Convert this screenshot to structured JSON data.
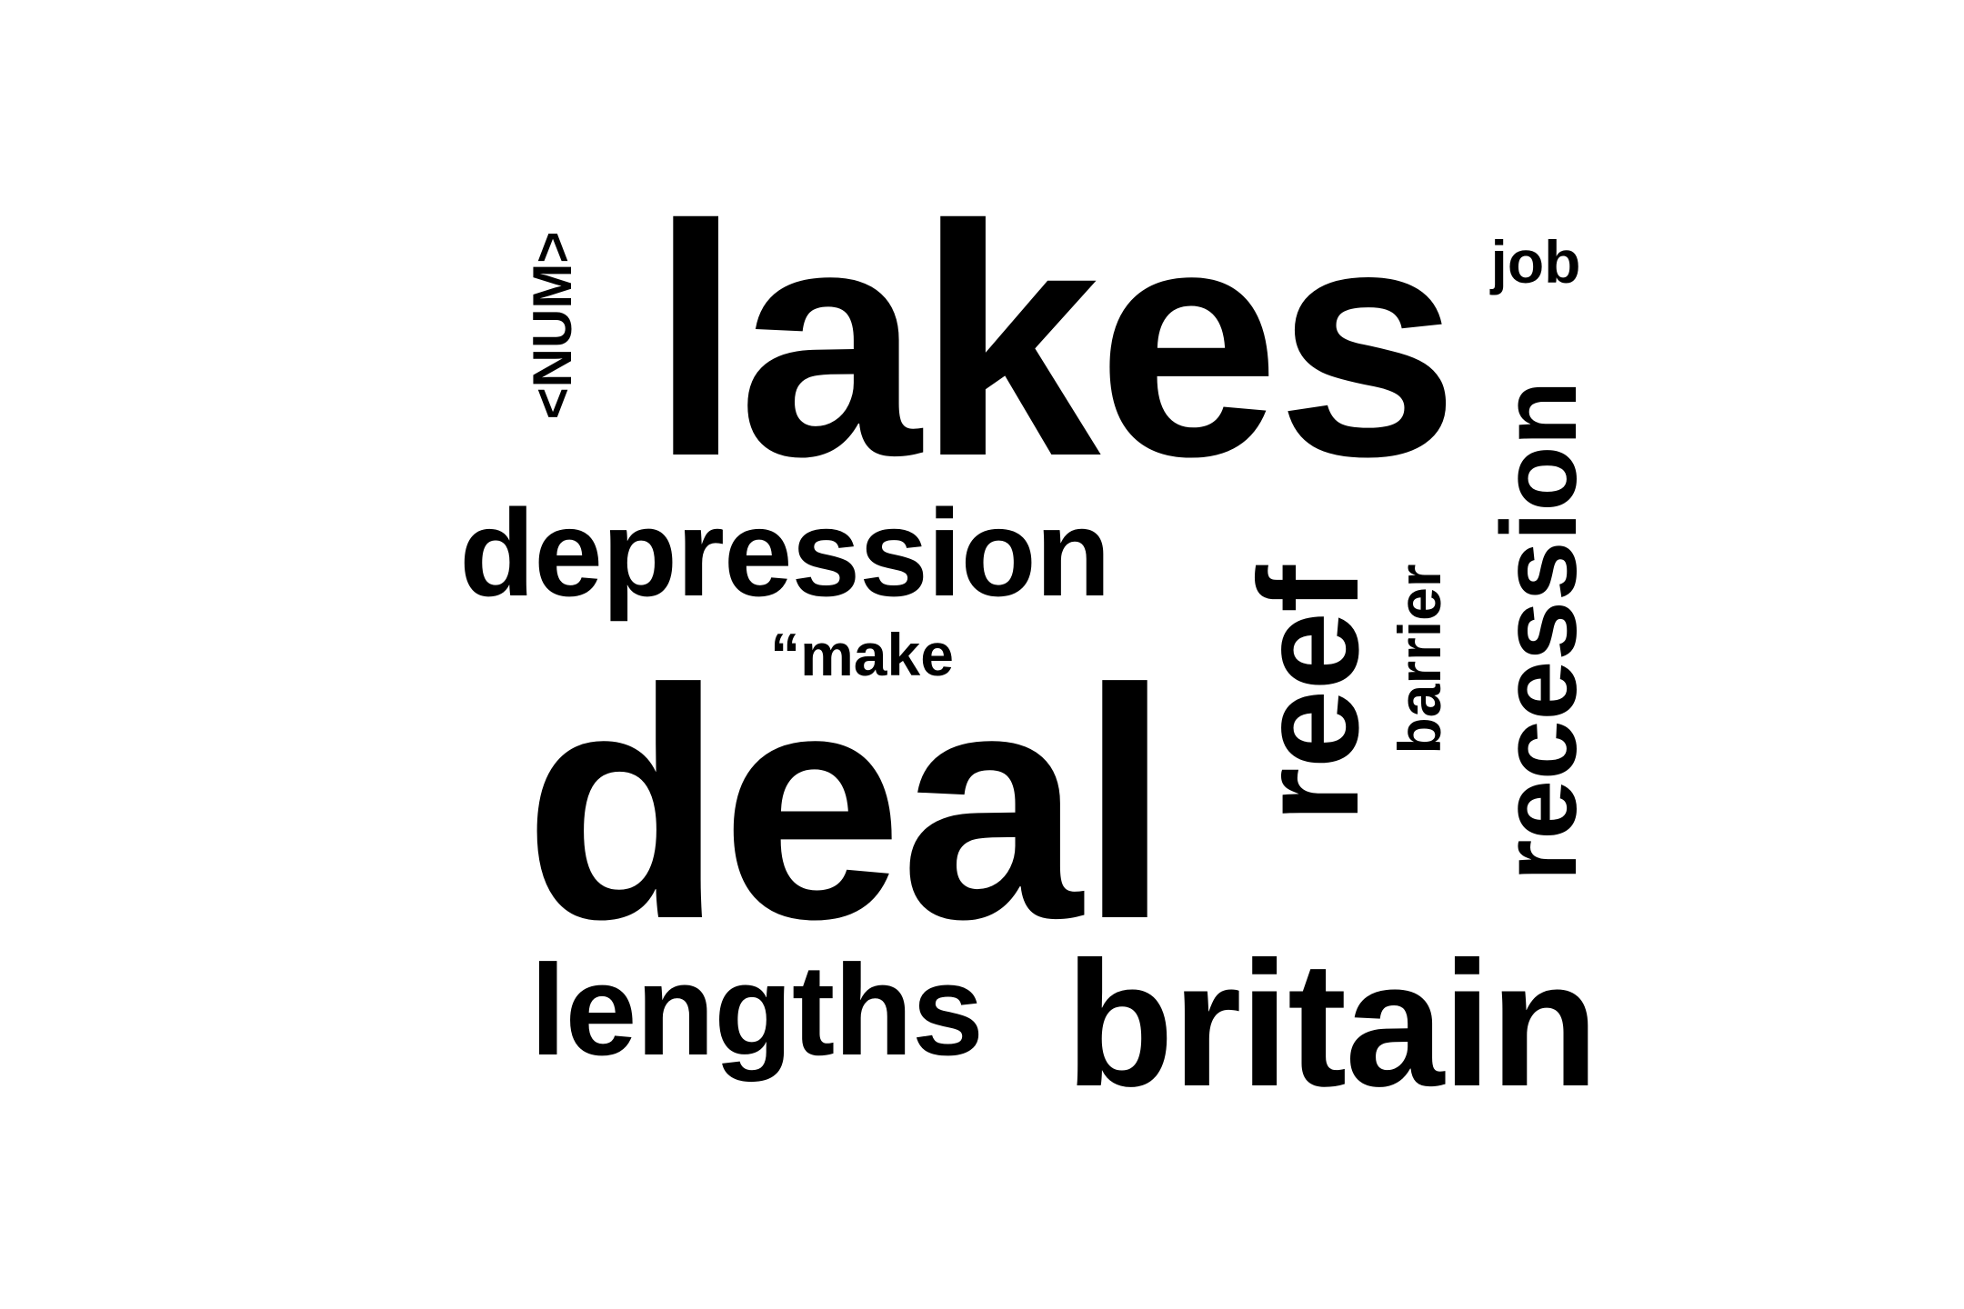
{
  "word_cloud": {
    "text_color": "#000000",
    "background_color": "#ffffff",
    "words": [
      {
        "text": "lakes",
        "orientation": "horizontal"
      },
      {
        "text": "deal",
        "orientation": "horizontal"
      },
      {
        "text": "depression",
        "orientation": "horizontal"
      },
      {
        "text": "“make",
        "orientation": "horizontal"
      },
      {
        "text": "lengths",
        "orientation": "horizontal"
      },
      {
        "text": "britain",
        "orientation": "horizontal"
      },
      {
        "text": "job",
        "orientation": "horizontal"
      },
      {
        "text": "<NUM>",
        "orientation": "vertical"
      },
      {
        "text": "reef",
        "orientation": "vertical"
      },
      {
        "text": "barrier",
        "orientation": "vertical"
      },
      {
        "text": "recession",
        "orientation": "vertical"
      }
    ]
  }
}
